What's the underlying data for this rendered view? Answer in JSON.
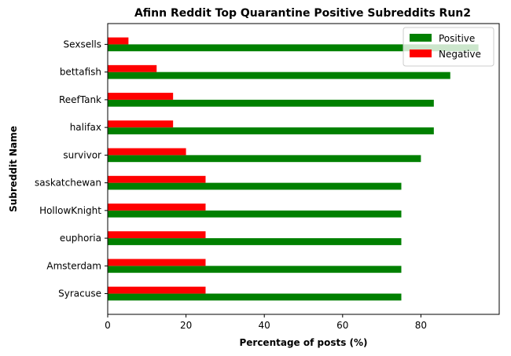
{
  "colors": {
    "positive": "#008000",
    "negative": "#ff0000"
  },
  "chart_data": {
    "type": "bar",
    "orientation": "horizontal",
    "title": "Afinn Reddit Top Quarantine Positive Subreddits Run2",
    "xlabel": "Percentage of posts (%)",
    "ylabel": "Subreddit Name",
    "xlim": [
      0,
      100
    ],
    "xticks": [
      0,
      20,
      40,
      60,
      80
    ],
    "grid": false,
    "legend_position": "top-right",
    "categories": [
      "Syracuse",
      "Amsterdam",
      "euphoria",
      "HollowKnight",
      "saskatchewan",
      "survivor",
      "halifax",
      "ReefTank",
      "bettafish",
      "Sexsells"
    ],
    "series": [
      {
        "name": "Positive",
        "values": [
          75,
          75,
          75,
          75,
          75,
          80,
          83.3,
          83.3,
          87.5,
          94.7
        ]
      },
      {
        "name": "Negative",
        "values": [
          25,
          25,
          25,
          25,
          25,
          20,
          16.7,
          16.7,
          12.5,
          5.3
        ]
      }
    ]
  }
}
